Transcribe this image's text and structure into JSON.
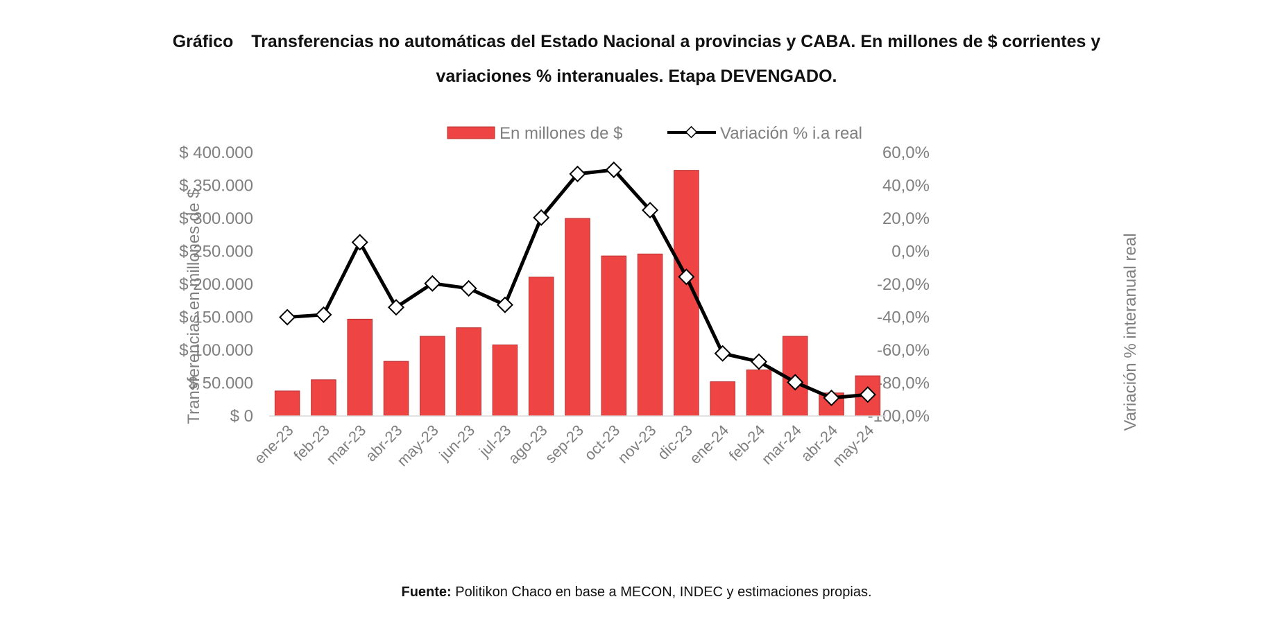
{
  "header": {
    "title_prefix": "Gráfico",
    "title_line1": "Transferencias no automáticas del Estado Nacional a provincias y CABA. En millones de $ corrientes y",
    "title_line2": "variaciones % interanuales. Etapa DEVENGADO."
  },
  "footer": {
    "source_label": "Fuente:",
    "source_text": " Politikon Chaco en base a MECON, INDEC y estimaciones propias."
  },
  "colors": {
    "bar_fill": "#ee4444",
    "bar_stroke": "#b83232",
    "line": "#000000",
    "marker_fill": "#ffffff",
    "axis_text": "#7f7f7f"
  },
  "chart_data": {
    "type": "bar",
    "categories": [
      "ene-23",
      "feb-23",
      "mar-23",
      "abr-23",
      "may-23",
      "jun-23",
      "jul-23",
      "ago-23",
      "sep-23",
      "oct-23",
      "nov-23",
      "dic-23",
      "ene-24",
      "feb-24",
      "mar-24",
      "abr-24",
      "may-24"
    ],
    "series": [
      {
        "name": "En millones de $",
        "type": "bar",
        "axis": "left",
        "values": [
          38000,
          55000,
          147000,
          83000,
          121000,
          134000,
          108000,
          211000,
          300000,
          243000,
          246000,
          373000,
          52000,
          70000,
          121000,
          35000,
          61000
        ]
      },
      {
        "name": "Variación % i.a real",
        "type": "line",
        "axis": "right",
        "values": [
          -40.0,
          -38.5,
          5.5,
          -34.0,
          -19.5,
          -22.5,
          -32.5,
          20.5,
          47.0,
          49.5,
          25.0,
          -15.5,
          -62.0,
          -67.0,
          -79.5,
          -89.0,
          -87.0
        ]
      }
    ],
    "ylabel_left": "Transferencias en millones de $",
    "ylabel_right": "Variación % interanual real",
    "ylim_left": [
      0,
      400000
    ],
    "ylim_right": [
      -100,
      60
    ],
    "yticks_left": [
      "$ 0",
      "$ 50.000",
      "$ 100.000",
      "$ 150.000",
      "$ 200.000",
      "$ 250.000",
      "$ 300.000",
      "$ 350.000",
      "$ 400.000"
    ],
    "yticks_right": [
      "-100,0%",
      "-80,0%",
      "-60,0%",
      "-40,0%",
      "-20,0%",
      "0,0%",
      "20,0%",
      "40,0%",
      "60,0%"
    ],
    "legend_position": "top-center",
    "grid": false
  }
}
